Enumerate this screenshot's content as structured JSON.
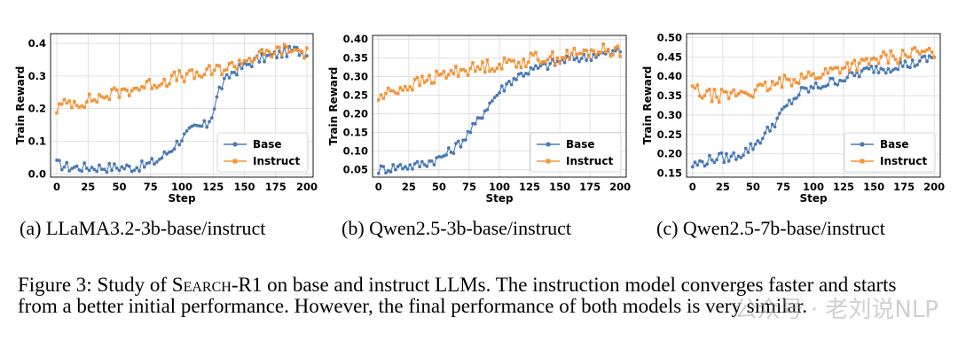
{
  "chart_data": [
    {
      "type": "line",
      "xlabel": "Step",
      "ylabel": "Train Reward",
      "xlim": [
        -5,
        205
      ],
      "ylim": [
        -0.01,
        0.43
      ],
      "xticks": [
        0,
        25,
        50,
        75,
        100,
        125,
        150,
        175,
        200
      ],
      "yticks": [
        0.0,
        0.1,
        0.2,
        0.3,
        0.4
      ],
      "ytick_labels": [
        "0.0",
        "0.1",
        "0.2",
        "0.3",
        "0.4"
      ],
      "legend_position": "lower-right",
      "series": [
        {
          "name": "Base",
          "color": "#4a7ab5",
          "x": [
            0,
            10,
            20,
            30,
            40,
            50,
            60,
            70,
            80,
            90,
            100,
            110,
            120,
            125,
            130,
            140,
            150,
            160,
            170,
            180,
            190,
            200
          ],
          "y": [
            0.03,
            0.02,
            0.02,
            0.02,
            0.02,
            0.02,
            0.02,
            0.025,
            0.04,
            0.07,
            0.11,
            0.14,
            0.15,
            0.19,
            0.26,
            0.31,
            0.33,
            0.35,
            0.36,
            0.37,
            0.38,
            0.37
          ]
        },
        {
          "name": "Instruct",
          "color": "#f3953a",
          "x": [
            0,
            10,
            20,
            30,
            40,
            50,
            60,
            70,
            80,
            90,
            100,
            110,
            120,
            130,
            140,
            150,
            160,
            170,
            180,
            190,
            200
          ],
          "y": [
            0.2,
            0.22,
            0.22,
            0.23,
            0.24,
            0.25,
            0.26,
            0.27,
            0.28,
            0.29,
            0.3,
            0.3,
            0.31,
            0.32,
            0.33,
            0.35,
            0.36,
            0.37,
            0.38,
            0.38,
            0.37
          ]
        }
      ]
    },
    {
      "type": "line",
      "xlabel": "Step",
      "ylabel": "Train Reward",
      "xlim": [
        -5,
        205
      ],
      "ylim": [
        0.03,
        0.41
      ],
      "xticks": [
        0,
        25,
        50,
        75,
        100,
        125,
        150,
        175,
        200
      ],
      "yticks": [
        0.05,
        0.1,
        0.15,
        0.2,
        0.25,
        0.3,
        0.35,
        0.4
      ],
      "ytick_labels": [
        "0.05",
        "0.10",
        "0.15",
        "0.20",
        "0.25",
        "0.30",
        "0.35",
        "0.40"
      ],
      "legend_position": "lower-right",
      "series": [
        {
          "name": "Base",
          "color": "#4a7ab5",
          "x": [
            0,
            10,
            20,
            30,
            40,
            50,
            60,
            70,
            80,
            90,
            100,
            110,
            120,
            130,
            140,
            150,
            160,
            170,
            180,
            190,
            200
          ],
          "y": [
            0.05,
            0.055,
            0.06,
            0.06,
            0.07,
            0.08,
            0.1,
            0.13,
            0.17,
            0.22,
            0.26,
            0.29,
            0.31,
            0.32,
            0.33,
            0.34,
            0.35,
            0.35,
            0.36,
            0.36,
            0.37
          ]
        },
        {
          "name": "Instruct",
          "color": "#f3953a",
          "x": [
            0,
            10,
            20,
            30,
            40,
            50,
            60,
            70,
            80,
            90,
            100,
            110,
            120,
            130,
            140,
            150,
            160,
            170,
            180,
            190,
            200
          ],
          "y": [
            0.24,
            0.26,
            0.27,
            0.28,
            0.29,
            0.3,
            0.31,
            0.32,
            0.32,
            0.33,
            0.33,
            0.34,
            0.34,
            0.35,
            0.35,
            0.35,
            0.36,
            0.36,
            0.37,
            0.37,
            0.37
          ]
        }
      ]
    },
    {
      "type": "line",
      "xlabel": "Step",
      "ylabel": "Train Reward",
      "xlim": [
        -5,
        205
      ],
      "ylim": [
        0.14,
        0.51
      ],
      "xticks": [
        0,
        25,
        50,
        75,
        100,
        125,
        150,
        175,
        200
      ],
      "yticks": [
        0.15,
        0.2,
        0.25,
        0.3,
        0.35,
        0.4,
        0.45,
        0.5
      ],
      "ytick_labels": [
        "0.15",
        "0.20",
        "0.25",
        "0.30",
        "0.35",
        "0.40",
        "0.45",
        "0.50"
      ],
      "legend_position": "lower-right",
      "series": [
        {
          "name": "Base",
          "color": "#4a7ab5",
          "x": [
            0,
            10,
            20,
            30,
            40,
            50,
            60,
            70,
            80,
            90,
            100,
            110,
            120,
            130,
            140,
            150,
            160,
            170,
            180,
            190,
            200
          ],
          "y": [
            0.17,
            0.18,
            0.19,
            0.19,
            0.2,
            0.22,
            0.25,
            0.29,
            0.33,
            0.36,
            0.37,
            0.38,
            0.39,
            0.4,
            0.41,
            0.42,
            0.42,
            0.43,
            0.43,
            0.44,
            0.45
          ]
        },
        {
          "name": "Instruct",
          "color": "#f3953a",
          "x": [
            0,
            10,
            20,
            30,
            40,
            50,
            60,
            70,
            80,
            90,
            100,
            110,
            120,
            130,
            140,
            150,
            160,
            170,
            180,
            190,
            200
          ],
          "y": [
            0.37,
            0.35,
            0.35,
            0.35,
            0.36,
            0.36,
            0.37,
            0.38,
            0.39,
            0.4,
            0.4,
            0.41,
            0.42,
            0.43,
            0.43,
            0.44,
            0.45,
            0.45,
            0.46,
            0.46,
            0.46
          ]
        }
      ]
    }
  ],
  "subcaptions": {
    "a": "(a) LLaMA3.2-3b-base/instruct",
    "b": "(b) Qwen2.5-3b-base/instruct",
    "c": "(c) Qwen2.5-7b-base/instruct"
  },
  "caption": {
    "prefix": "Figure 3: Study of ",
    "method": "Search",
    "method_suffix": "-R1",
    "rest": " on base and instruct LLMs. The instruction model converges faster and starts from a better initial performance. However, the final performance of both models is very similar."
  },
  "watermark": "公众号 · 老刘说NLP"
}
